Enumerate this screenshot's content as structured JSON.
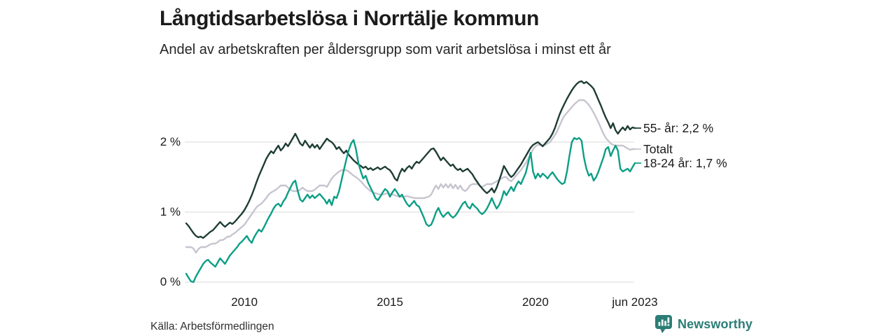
{
  "header": {
    "title": "Långtidsarbetslösa i Norrtälje kommun",
    "subtitle": "Andel av arbetskraften per åldersgrupp som varit arbetslösa i minst ett år"
  },
  "footer": {
    "source": "Källa: Arbetsförmedlingen",
    "brand": "Newsworthy",
    "brand_icon": "newsworthy-speech-bubble-bar-chart-icon",
    "brand_color": "#2b7d75"
  },
  "colors": {
    "age_55": "#1e3d35",
    "total": "#c6c5cf",
    "age_18_24": "#0c9e85",
    "gridline": "#d9d9d9",
    "text": "#1b1b1b"
  },
  "chart_data": {
    "type": "line",
    "title": "Långtidsarbetslösa i Norrtälje kommun",
    "subtitle": "Andel av arbetskraften per åldersgrupp som varit arbetslösa i minst ett år",
    "unit": "%",
    "interval": "monthly",
    "x_start": 2008.0,
    "x_end": 2023.417,
    "ylim": [
      0,
      2.95
    ],
    "grid": "horizontal",
    "legend_position": "right-end-labels",
    "y_ticks": [
      {
        "label": "0 %",
        "value": 0
      },
      {
        "label": "1 %",
        "value": 1
      },
      {
        "label": "2 %",
        "value": 2
      }
    ],
    "x_ticks": [
      {
        "label": "2010",
        "year": 2010
      },
      {
        "label": "2015",
        "year": 2015
      },
      {
        "label": "2020",
        "year": 2020
      },
      {
        "label": "jun 2023",
        "year": 2023.417
      }
    ],
    "series": [
      {
        "name": "55- år",
        "end_label": "55- år: 2,2 %",
        "last_value": 2.2,
        "color": "#1e3d35",
        "draw_order": 1,
        "values": [
          0.84,
          0.8,
          0.75,
          0.7,
          0.66,
          0.64,
          0.65,
          0.63,
          0.66,
          0.69,
          0.72,
          0.74,
          0.78,
          0.82,
          0.86,
          0.82,
          0.79,
          0.82,
          0.85,
          0.83,
          0.86,
          0.9,
          0.94,
          0.98,
          1.03,
          1.09,
          1.16,
          1.24,
          1.33,
          1.43,
          1.52,
          1.6,
          1.68,
          1.76,
          1.82,
          1.87,
          1.84,
          1.9,
          1.95,
          1.88,
          1.92,
          1.98,
          1.94,
          2.0,
          2.06,
          2.12,
          2.05,
          1.98,
          1.95,
          2.02,
          1.97,
          1.92,
          1.97,
          1.92,
          1.96,
          1.9,
          1.95,
          2.0,
          2.05,
          2.02,
          2.0,
          1.96,
          1.9,
          1.93,
          1.88,
          1.84,
          1.88,
          1.82,
          1.78,
          1.74,
          1.71,
          1.68,
          1.66,
          1.63,
          1.65,
          1.61,
          1.63,
          1.6,
          1.62,
          1.64,
          1.61,
          1.63,
          1.65,
          1.62,
          1.6,
          1.55,
          1.48,
          1.45,
          1.55,
          1.62,
          1.58,
          1.63,
          1.66,
          1.62,
          1.68,
          1.72,
          1.7,
          1.74,
          1.78,
          1.82,
          1.86,
          1.9,
          1.91,
          1.86,
          1.8,
          1.74,
          1.78,
          1.74,
          1.7,
          1.66,
          1.68,
          1.63,
          1.6,
          1.62,
          1.58,
          1.6,
          1.62,
          1.58,
          1.54,
          1.48,
          1.43,
          1.38,
          1.34,
          1.3,
          1.27,
          1.3,
          1.34,
          1.28,
          1.35,
          1.45,
          1.55,
          1.66,
          1.6,
          1.54,
          1.5,
          1.53,
          1.58,
          1.63,
          1.68,
          1.74,
          1.8,
          1.86,
          1.92,
          1.96,
          1.98,
          2.0,
          1.97,
          1.94,
          1.98,
          2.02,
          2.06,
          2.12,
          2.2,
          2.3,
          2.4,
          2.48,
          2.55,
          2.62,
          2.68,
          2.74,
          2.79,
          2.83,
          2.86,
          2.87,
          2.84,
          2.86,
          2.83,
          2.8,
          2.76,
          2.68,
          2.6,
          2.52,
          2.43,
          2.35,
          2.28,
          2.2,
          2.27,
          2.17,
          2.12,
          2.17,
          2.21,
          2.17,
          2.23,
          2.18,
          2.21,
          2.2
        ]
      },
      {
        "name": "Totalt",
        "end_label": "Totalt",
        "last_value": 1.9,
        "color": "#c6c5cf",
        "draw_order": 0,
        "values": [
          0.5,
          0.5,
          0.5,
          0.48,
          0.42,
          0.47,
          0.5,
          0.5,
          0.5,
          0.52,
          0.54,
          0.55,
          0.55,
          0.57,
          0.6,
          0.6,
          0.62,
          0.65,
          0.65,
          0.68,
          0.7,
          0.73,
          0.76,
          0.79,
          0.82,
          0.87,
          0.92,
          0.97,
          1.02,
          1.07,
          1.1,
          1.12,
          1.16,
          1.2,
          1.25,
          1.28,
          1.3,
          1.32,
          1.35,
          1.38,
          1.38,
          1.38,
          1.35,
          1.32,
          1.3,
          1.3,
          1.3,
          1.32,
          1.35,
          1.32,
          1.3,
          1.3,
          1.3,
          1.32,
          1.35,
          1.38,
          1.38,
          1.38,
          1.36,
          1.42,
          1.48,
          1.52,
          1.55,
          1.58,
          1.6,
          1.6,
          1.6,
          1.58,
          1.55,
          1.52,
          1.5,
          1.47,
          1.44,
          1.4,
          1.36,
          1.33,
          1.3,
          1.28,
          1.27,
          1.26,
          1.25,
          1.25,
          1.26,
          1.27,
          1.26,
          1.25,
          1.24,
          1.23,
          1.22,
          1.22,
          1.22,
          1.23,
          1.22,
          1.21,
          1.2,
          1.2,
          1.2,
          1.2,
          1.2,
          1.21,
          1.22,
          1.25,
          1.32,
          1.38,
          1.33,
          1.4,
          1.35,
          1.4,
          1.35,
          1.4,
          1.34,
          1.39,
          1.33,
          1.38,
          1.32,
          1.3,
          1.33,
          1.38,
          1.4,
          1.4,
          1.4,
          1.38,
          1.36,
          1.38,
          1.4,
          1.4,
          1.4,
          1.42,
          1.44,
          1.46,
          1.48,
          1.5,
          1.5,
          1.46,
          1.44,
          1.48,
          1.52,
          1.56,
          1.6,
          1.65,
          1.7,
          1.76,
          1.82,
          1.9,
          1.94,
          1.96,
          1.96,
          1.95,
          1.96,
          1.98,
          2.0,
          2.05,
          2.1,
          2.16,
          2.24,
          2.32,
          2.38,
          2.42,
          2.46,
          2.5,
          2.54,
          2.57,
          2.6,
          2.6,
          2.6,
          2.57,
          2.53,
          2.48,
          2.42,
          2.35,
          2.28,
          2.2,
          2.12,
          2.06,
          2.02,
          1.98,
          1.96,
          1.95,
          1.95,
          1.95,
          1.95,
          1.93,
          1.91,
          1.89,
          1.9,
          1.9
        ]
      },
      {
        "name": "18-24 år",
        "end_label": "18-24 år: 1,7 %",
        "last_value": 1.7,
        "color": "#0c9e85",
        "draw_order": 2,
        "values": [
          0.12,
          0.06,
          0.01,
          0.0,
          0.08,
          0.14,
          0.2,
          0.26,
          0.3,
          0.32,
          0.28,
          0.25,
          0.22,
          0.28,
          0.34,
          0.3,
          0.26,
          0.32,
          0.38,
          0.42,
          0.46,
          0.5,
          0.55,
          0.58,
          0.62,
          0.66,
          0.6,
          0.56,
          0.64,
          0.7,
          0.75,
          0.72,
          0.78,
          0.85,
          0.92,
          0.98,
          1.05,
          1.1,
          1.12,
          1.08,
          1.15,
          1.2,
          1.28,
          1.35,
          1.42,
          1.45,
          1.3,
          1.18,
          1.15,
          1.2,
          1.25,
          1.2,
          1.24,
          1.2,
          1.23,
          1.26,
          1.22,
          1.18,
          1.12,
          1.18,
          1.1,
          1.22,
          1.2,
          1.3,
          1.45,
          1.6,
          1.75,
          1.88,
          1.98,
          2.03,
          1.9,
          1.7,
          1.58,
          1.48,
          1.52,
          1.42,
          1.35,
          1.28,
          1.2,
          1.17,
          1.22,
          1.28,
          1.33,
          1.3,
          1.22,
          1.28,
          1.33,
          1.28,
          1.22,
          1.25,
          1.18,
          1.12,
          1.08,
          1.12,
          1.16,
          1.1,
          1.08,
          1.0,
          0.92,
          0.83,
          0.8,
          0.82,
          0.9,
          1.0,
          1.06,
          0.98,
          0.93,
          0.97,
          1.0,
          0.95,
          0.92,
          0.95,
          1.0,
          1.06,
          1.12,
          1.15,
          1.08,
          1.05,
          1.12,
          1.08,
          1.05,
          1.0,
          0.97,
          1.0,
          1.05,
          1.12,
          1.2,
          1.12,
          1.05,
          1.1,
          1.18,
          1.3,
          1.24,
          1.3,
          1.36,
          1.3,
          1.38,
          1.44,
          1.4,
          1.48,
          1.56,
          1.7,
          1.85,
          1.58,
          1.48,
          1.55,
          1.5,
          1.55,
          1.52,
          1.48,
          1.53,
          1.57,
          1.52,
          1.47,
          1.43,
          1.4,
          1.42,
          1.58,
          1.8,
          2.0,
          2.06,
          2.04,
          2.06,
          2.02,
          1.78,
          1.62,
          1.52,
          1.55,
          1.45,
          1.5,
          1.58,
          1.68,
          1.78,
          1.9,
          1.93,
          1.8,
          1.88,
          1.95,
          1.88,
          1.62,
          1.58,
          1.6,
          1.62,
          1.58,
          1.64,
          1.7
        ]
      }
    ]
  }
}
